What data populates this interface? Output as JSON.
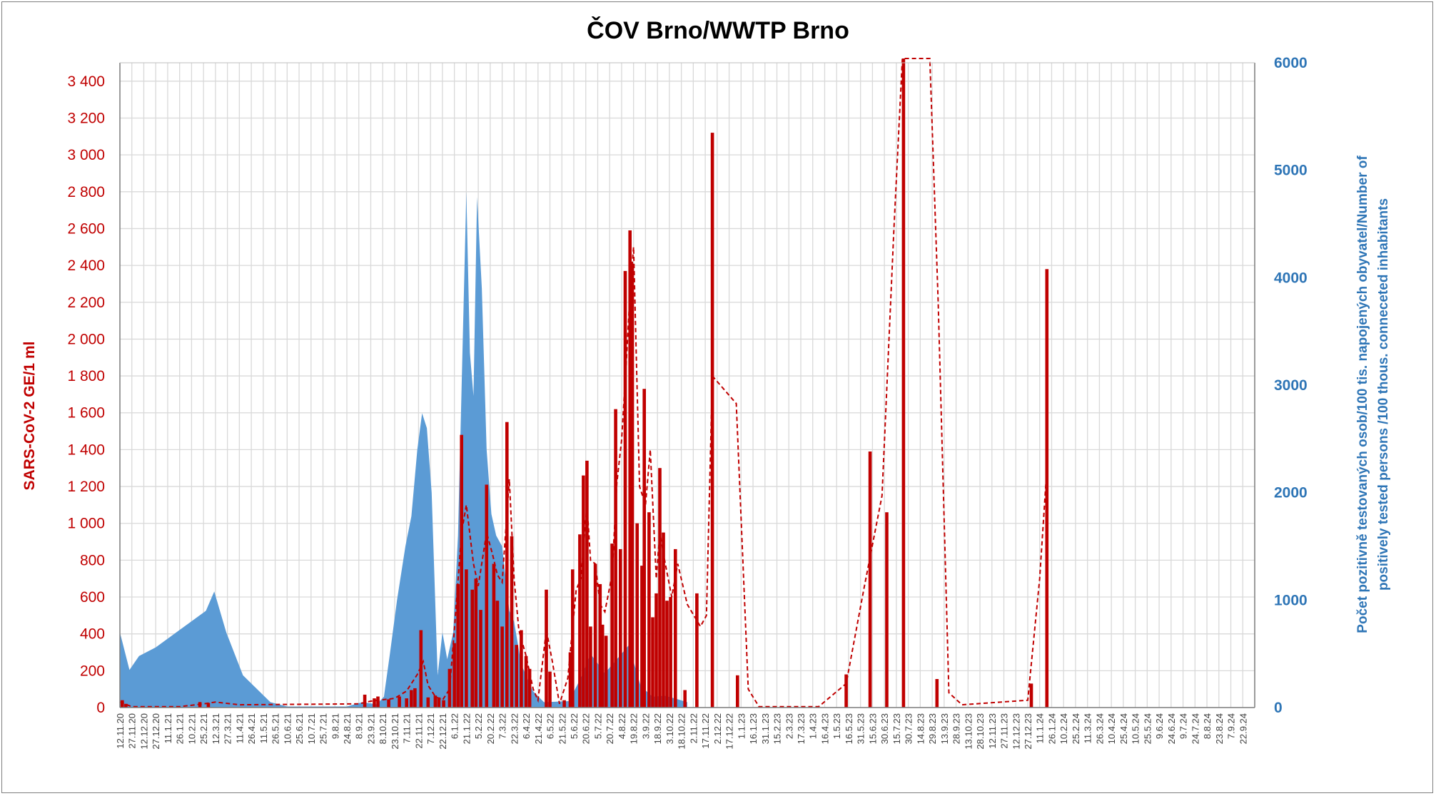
{
  "chart_data": {
    "type": "bar",
    "title": "ČOV Brno/WWTP Brno",
    "ylabel": "SARS-CoV-2 GE/1 ml",
    "y2label_line1": "Počet pozitivně testovaných osob/100 tis. napojených obyvatel/Number of",
    "y2label_line2": "positively tested persons /100 thous. conneceted inhabitants",
    "ylim": [
      0,
      3500
    ],
    "y2lim": [
      0,
      6000
    ],
    "y_ticks": [
      "0",
      "200",
      "400",
      "600",
      "800",
      "1 000",
      "1 200",
      "1 400",
      "1 600",
      "1 800",
      "2 000",
      "2 200",
      "2 400",
      "2 600",
      "2 800",
      "3 000",
      "3 200",
      "3 400"
    ],
    "y2_ticks": [
      "0",
      "1000",
      "2000",
      "3000",
      "4000",
      "5000",
      "6000"
    ],
    "x_ticks": [
      "12.11.20",
      "27.11.20",
      "12.12.20",
      "27.12.20",
      "11.1.21",
      "26.1.21",
      "10.2.21",
      "25.2.21",
      "12.3.21",
      "27.3.21",
      "11.4.21",
      "26.4.21",
      "11.5.21",
      "26.5.21",
      "10.6.21",
      "25.6.21",
      "10.7.21",
      "25.7.21",
      "9.8.21",
      "24.8.21",
      "8.9.21",
      "23.9.21",
      "8.10.21",
      "23.10.21",
      "7.11.21",
      "22.11.21",
      "7.12.21",
      "22.12.21",
      "6.1.22",
      "21.1.22",
      "5.2.22",
      "20.2.22",
      "7.3.22",
      "22.3.22",
      "6.4.22",
      "21.4.22",
      "6.5.22",
      "21.5.22",
      "5.6.22",
      "20.6.22",
      "5.7.22",
      "20.7.22",
      "4.8.22",
      "19.8.22",
      "3.9.22",
      "18.9.22",
      "3.10.22",
      "18.10.22",
      "2.11.22",
      "17.11.22",
      "2.12.22",
      "17.12.22",
      "1.1.23",
      "16.1.23",
      "31.1.23",
      "15.2.23",
      "2.3.23",
      "17.3.23",
      "1.4.23",
      "16.4.23",
      "1.5.23",
      "16.5.23",
      "31.5.23",
      "15.6.23",
      "30.6.23",
      "15.7.23",
      "30.7.23",
      "14.8.23",
      "29.8.23",
      "13.9.23",
      "28.9.23",
      "13.10.23",
      "28.10.23",
      "12.11.23",
      "27.11.23",
      "12.12.23",
      "27.12.23",
      "11.1.24",
      "26.1.24",
      "10.2.24",
      "25.2.24",
      "11.3.24",
      "26.3.24",
      "10.4.24",
      "25.4.24",
      "10.5.24",
      "25.5.24",
      "9.6.24",
      "24.6.24",
      "9.7.24",
      "24.7.24",
      "8.8.24",
      "23.8.24",
      "7.9.24",
      "22.9.24"
    ],
    "series": [
      {
        "type": "bar",
        "color": "#c00000",
        "values_by_tick": [
          [
            0.2,
            40
          ],
          [
            0.5,
            20
          ],
          [
            6.7,
            30
          ],
          [
            7.4,
            25
          ],
          [
            20.5,
            70
          ],
          [
            21.3,
            50
          ],
          [
            21.6,
            60
          ],
          [
            22.5,
            45
          ],
          [
            23.4,
            60
          ],
          [
            24.0,
            50
          ],
          [
            24.4,
            95
          ],
          [
            24.7,
            105
          ],
          [
            25.2,
            420
          ],
          [
            25.8,
            55
          ],
          [
            26.4,
            65
          ],
          [
            26.7,
            55
          ],
          [
            27.1,
            40
          ],
          [
            27.6,
            210
          ],
          [
            28.0,
            350
          ],
          [
            28.3,
            670
          ],
          [
            28.6,
            1480
          ],
          [
            29.0,
            750
          ],
          [
            29.5,
            640
          ],
          [
            29.8,
            700
          ],
          [
            30.2,
            530
          ],
          [
            30.7,
            1210
          ],
          [
            31.3,
            780
          ],
          [
            31.6,
            580
          ],
          [
            32.0,
            440
          ],
          [
            32.4,
            1550
          ],
          [
            32.8,
            930
          ],
          [
            33.2,
            340
          ],
          [
            33.6,
            420
          ],
          [
            34.0,
            280
          ],
          [
            34.3,
            210
          ],
          [
            35.7,
            640
          ],
          [
            36.0,
            195
          ],
          [
            37.2,
            40
          ],
          [
            37.7,
            300
          ],
          [
            37.9,
            750
          ],
          [
            38.5,
            940
          ],
          [
            38.8,
            1260
          ],
          [
            39.1,
            1340
          ],
          [
            39.4,
            440
          ],
          [
            39.8,
            780
          ],
          [
            40.2,
            670
          ],
          [
            40.4,
            450
          ],
          [
            40.7,
            390
          ],
          [
            41.2,
            890
          ],
          [
            41.5,
            1620
          ],
          [
            41.9,
            860
          ],
          [
            42.3,
            2370
          ],
          [
            42.7,
            2590
          ],
          [
            42.9,
            2410
          ],
          [
            43.3,
            1000
          ],
          [
            43.7,
            770
          ],
          [
            43.9,
            1730
          ],
          [
            44.3,
            1060
          ],
          [
            44.6,
            490
          ],
          [
            44.9,
            620
          ],
          [
            45.2,
            1300
          ],
          [
            45.5,
            950
          ],
          [
            45.8,
            580
          ],
          [
            46.1,
            600
          ],
          [
            46.5,
            860
          ],
          [
            47.3,
            95
          ],
          [
            48.3,
            620
          ],
          [
            49.6,
            3120
          ],
          [
            51.7,
            175
          ],
          [
            60.8,
            180
          ],
          [
            62.8,
            1390
          ],
          [
            64.2,
            1060
          ],
          [
            65.6,
            3500
          ],
          [
            68.4,
            155
          ],
          [
            76.3,
            130
          ],
          [
            77.6,
            2380
          ]
        ]
      },
      {
        "type": "line",
        "style": "dashed",
        "color": "#c00000",
        "points_by_tick": [
          [
            0,
            30
          ],
          [
            1,
            5
          ],
          [
            5,
            5
          ],
          [
            7,
            20
          ],
          [
            8,
            30
          ],
          [
            10,
            15
          ],
          [
            20,
            20
          ],
          [
            21,
            35
          ],
          [
            23,
            50
          ],
          [
            24,
            90
          ],
          [
            24.9,
            180
          ],
          [
            25.4,
            250
          ],
          [
            25.8,
            120
          ],
          [
            26.4,
            60
          ],
          [
            27.0,
            40
          ],
          [
            27.6,
            100
          ],
          [
            28.0,
            420
          ],
          [
            28.6,
            950
          ],
          [
            29.0,
            1100
          ],
          [
            29.6,
            780
          ],
          [
            30.0,
            660
          ],
          [
            30.7,
            950
          ],
          [
            31.2,
            830
          ],
          [
            31.6,
            720
          ],
          [
            32.0,
            680
          ],
          [
            32.6,
            1240
          ],
          [
            33.0,
            700
          ],
          [
            33.4,
            420
          ],
          [
            34.0,
            280
          ],
          [
            34.6,
            100
          ],
          [
            35.0,
            40
          ],
          [
            35.7,
            420
          ],
          [
            36.2,
            250
          ],
          [
            36.8,
            20
          ],
          [
            37.5,
            160
          ],
          [
            38.2,
            640
          ],
          [
            38.6,
            700
          ],
          [
            39.1,
            1100
          ],
          [
            39.4,
            800
          ],
          [
            39.8,
            780
          ],
          [
            40.2,
            560
          ],
          [
            40.6,
            520
          ],
          [
            41.2,
            720
          ],
          [
            41.6,
            1220
          ],
          [
            42.0,
            1450
          ],
          [
            42.4,
            1880
          ],
          [
            42.7,
            2250
          ],
          [
            43.0,
            2500
          ],
          [
            43.5,
            1200
          ],
          [
            44.0,
            1100
          ],
          [
            44.4,
            1400
          ],
          [
            44.9,
            700
          ],
          [
            45.2,
            950
          ],
          [
            45.6,
            800
          ],
          [
            46.2,
            600
          ],
          [
            46.7,
            780
          ],
          [
            47.5,
            560
          ],
          [
            48.6,
            440
          ],
          [
            49.1,
            500
          ],
          [
            49.6,
            1800
          ],
          [
            51.6,
            1650
          ],
          [
            52.6,
            100
          ],
          [
            53.5,
            5
          ],
          [
            58.5,
            5
          ],
          [
            60.8,
            130
          ],
          [
            62.3,
            650
          ],
          [
            63.8,
            1150
          ],
          [
            64.8,
            2600
          ],
          [
            65.5,
            3500
          ],
          [
            67.8,
            3500
          ],
          [
            68.5,
            2200
          ],
          [
            69.4,
            80
          ],
          [
            70.5,
            15
          ],
          [
            76.0,
            40
          ],
          [
            77.0,
            700
          ],
          [
            77.6,
            1300
          ]
        ]
      },
      {
        "type": "area",
        "color": "#5b9bd5",
        "points_by_tick": [
          [
            0,
            700
          ],
          [
            0.8,
            350
          ],
          [
            1.6,
            480
          ],
          [
            3,
            560
          ],
          [
            7.2,
            900
          ],
          [
            7.9,
            1080
          ],
          [
            8.9,
            700
          ],
          [
            10.3,
            300
          ],
          [
            12.6,
            50
          ],
          [
            14,
            10
          ],
          [
            19,
            10
          ],
          [
            20.3,
            50
          ],
          [
            21.5,
            30
          ],
          [
            22.1,
            100
          ],
          [
            22.6,
            500
          ],
          [
            23.2,
            1000
          ],
          [
            23.9,
            1500
          ],
          [
            24.4,
            1780
          ],
          [
            24.9,
            2400
          ],
          [
            25.3,
            2740
          ],
          [
            25.7,
            2600
          ],
          [
            26.1,
            2000
          ],
          [
            26.6,
            300
          ],
          [
            27.0,
            700
          ],
          [
            27.4,
            450
          ],
          [
            27.9,
            700
          ],
          [
            28.3,
            1600
          ],
          [
            28.7,
            3400
          ],
          [
            29.0,
            4800
          ],
          [
            29.3,
            3300
          ],
          [
            29.6,
            2900
          ],
          [
            29.9,
            4750
          ],
          [
            30.3,
            3900
          ],
          [
            30.7,
            2400
          ],
          [
            31.1,
            1800
          ],
          [
            31.5,
            1600
          ],
          [
            32.0,
            1500
          ],
          [
            32.6,
            900
          ],
          [
            33.0,
            800
          ],
          [
            33.6,
            400
          ],
          [
            34.6,
            150
          ],
          [
            35.5,
            50
          ],
          [
            37.6,
            60
          ],
          [
            38.7,
            300
          ],
          [
            39.4,
            500
          ],
          [
            40.6,
            320
          ],
          [
            41.6,
            450
          ],
          [
            42.6,
            580
          ],
          [
            43.6,
            200
          ],
          [
            44.6,
            100
          ],
          [
            45.6,
            110
          ],
          [
            46.6,
            80
          ],
          [
            47.5,
            50
          ]
        ]
      }
    ]
  }
}
